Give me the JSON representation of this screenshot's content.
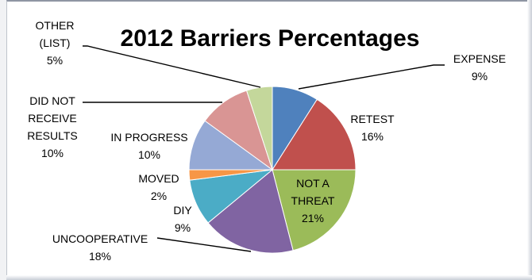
{
  "chart_data": {
    "type": "pie",
    "title": "2012 Barriers Percentages",
    "slices": [
      {
        "name": "EXPENSE",
        "pct_label": "9%",
        "value": 9,
        "color": "#4f81bd"
      },
      {
        "name": "RETEST",
        "pct_label": "16%",
        "value": 16,
        "color": "#c0504d"
      },
      {
        "name": "NOT A THREAT",
        "pct_label": "21%",
        "value": 21,
        "color": "#9bbb59"
      },
      {
        "name": "UNCOOPERATIVE",
        "pct_label": "18%",
        "value": 18,
        "color": "#8064a2"
      },
      {
        "name": "DIY",
        "pct_label": "9%",
        "value": 9,
        "color": "#4bacc6"
      },
      {
        "name": "MOVED",
        "pct_label": "2%",
        "value": 2,
        "color": "#f79646"
      },
      {
        "name": "IN PROGRESS",
        "pct_label": "10%",
        "value": 10,
        "color": "#95a9d5"
      },
      {
        "name": "DID NOT RECEIVE RESULTS",
        "pct_label": "10%",
        "value": 10,
        "color": "#d99594"
      },
      {
        "name": "OTHER (LIST)",
        "pct_label": "5%",
        "value": 5,
        "color": "#c4d79b"
      }
    ],
    "labels": [
      {
        "lines": [
          "EXPENSE",
          "9%"
        ]
      },
      {
        "lines": [
          "RETEST",
          "16%"
        ]
      },
      {
        "lines": [
          "NOT A",
          "THREAT",
          "21%"
        ]
      },
      {
        "lines": [
          "UNCOOPERATIVE",
          "18%"
        ]
      },
      {
        "lines": [
          "DIY",
          "9%"
        ]
      },
      {
        "lines": [
          "MOVED",
          "2%"
        ]
      },
      {
        "lines": [
          "IN PROGRESS",
          "10%"
        ]
      },
      {
        "lines": [
          "DID NOT",
          "RECEIVE",
          "RESULTS",
          "10%"
        ]
      },
      {
        "lines": [
          "OTHER",
          "(LIST)",
          "5%"
        ]
      }
    ]
  }
}
